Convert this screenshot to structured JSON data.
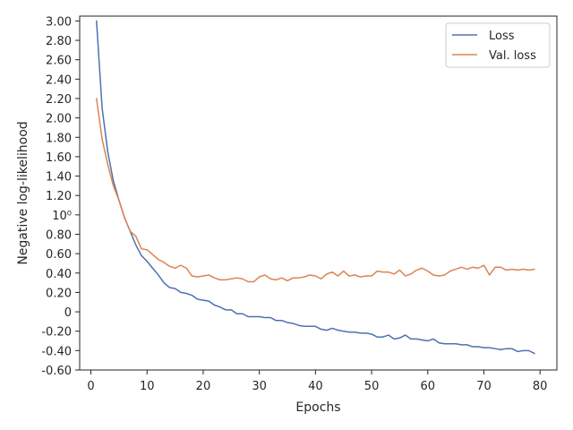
{
  "chart_data": {
    "type": "line",
    "xlabel": "Epochs",
    "ylabel": "Negative log-likelihood",
    "xlim": [
      -2,
      83
    ],
    "ylim": [
      -0.6,
      3.05
    ],
    "grid": false,
    "legend_placement": "top-right",
    "x_ticks": [
      0,
      10,
      20,
      30,
      40,
      50,
      60,
      70,
      80
    ],
    "y_ticks": [
      {
        "value": -0.6,
        "label": "-0.60"
      },
      {
        "value": -0.4,
        "label": "-0.40"
      },
      {
        "value": -0.2,
        "label": "-0.20"
      },
      {
        "value": 0.0,
        "label": "0"
      },
      {
        "value": 0.2,
        "label": "0.20"
      },
      {
        "value": 0.4,
        "label": "0.40"
      },
      {
        "value": 0.6,
        "label": "0.60"
      },
      {
        "value": 0.8,
        "label": "0.80"
      },
      {
        "value": 1.0,
        "label": "10⁰"
      },
      {
        "value": 1.2,
        "label": "1.20"
      },
      {
        "value": 1.4,
        "label": "1.40"
      },
      {
        "value": 1.6,
        "label": "1.60"
      },
      {
        "value": 1.8,
        "label": "1.80"
      },
      {
        "value": 2.0,
        "label": "2.00"
      },
      {
        "value": 2.2,
        "label": "2.20"
      },
      {
        "value": 2.4,
        "label": "2.40"
      },
      {
        "value": 2.6,
        "label": "2.60"
      },
      {
        "value": 2.8,
        "label": "2.80"
      },
      {
        "value": 3.0,
        "label": "3.00"
      }
    ],
    "series": [
      {
        "name": "Loss",
        "color": "#4c72b0",
        "x": [
          1,
          2,
          3,
          4,
          5,
          6,
          7,
          8,
          9,
          10,
          11,
          12,
          13,
          14,
          15,
          16,
          17,
          18,
          19,
          20,
          21,
          22,
          23,
          24,
          25,
          26,
          27,
          28,
          29,
          30,
          31,
          32,
          33,
          34,
          35,
          36,
          37,
          38,
          39,
          40,
          41,
          42,
          43,
          44,
          45,
          46,
          47,
          48,
          49,
          50,
          51,
          52,
          53,
          54,
          55,
          56,
          57,
          58,
          59,
          60,
          61,
          62,
          63,
          64,
          65,
          66,
          67,
          68,
          69,
          70,
          71,
          72,
          73,
          74,
          75,
          76,
          77,
          78,
          79
        ],
        "values": [
          3.0,
          2.1,
          1.65,
          1.35,
          1.15,
          0.97,
          0.83,
          0.69,
          0.58,
          0.52,
          0.45,
          0.38,
          0.3,
          0.25,
          0.24,
          0.2,
          0.19,
          0.17,
          0.13,
          0.12,
          0.11,
          0.07,
          0.05,
          0.02,
          0.02,
          -0.02,
          -0.02,
          -0.05,
          -0.05,
          -0.05,
          -0.06,
          -0.06,
          -0.09,
          -0.09,
          -0.11,
          -0.12,
          -0.14,
          -0.15,
          -0.15,
          -0.15,
          -0.18,
          -0.19,
          -0.17,
          -0.19,
          -0.2,
          -0.21,
          -0.21,
          -0.22,
          -0.22,
          -0.23,
          -0.26,
          -0.26,
          -0.24,
          -0.28,
          -0.27,
          -0.24,
          -0.28,
          -0.28,
          -0.29,
          -0.3,
          -0.28,
          -0.32,
          -0.33,
          -0.33,
          -0.33,
          -0.34,
          -0.34,
          -0.36,
          -0.36,
          -0.37,
          -0.37,
          -0.38,
          -0.39,
          -0.38,
          -0.38,
          -0.41,
          -0.4,
          -0.4,
          -0.43
        ]
      },
      {
        "name": "Val. loss",
        "color": "#dd8452",
        "x": [
          1,
          2,
          3,
          4,
          5,
          6,
          7,
          8,
          9,
          10,
          11,
          12,
          13,
          14,
          15,
          16,
          17,
          18,
          19,
          20,
          21,
          22,
          23,
          24,
          25,
          26,
          27,
          28,
          29,
          30,
          31,
          32,
          33,
          34,
          35,
          36,
          37,
          38,
          39,
          40,
          41,
          42,
          43,
          44,
          45,
          46,
          47,
          48,
          49,
          50,
          51,
          52,
          53,
          54,
          55,
          56,
          57,
          58,
          59,
          60,
          61,
          62,
          63,
          64,
          65,
          66,
          67,
          68,
          69,
          70,
          71,
          72,
          73,
          74,
          75,
          76,
          77,
          78,
          79
        ],
        "values": [
          2.2,
          1.78,
          1.52,
          1.3,
          1.15,
          0.97,
          0.83,
          0.78,
          0.65,
          0.64,
          0.59,
          0.54,
          0.51,
          0.47,
          0.45,
          0.48,
          0.45,
          0.37,
          0.36,
          0.37,
          0.38,
          0.35,
          0.33,
          0.33,
          0.34,
          0.35,
          0.34,
          0.31,
          0.31,
          0.36,
          0.38,
          0.34,
          0.33,
          0.35,
          0.32,
          0.35,
          0.35,
          0.36,
          0.38,
          0.37,
          0.34,
          0.39,
          0.41,
          0.37,
          0.42,
          0.37,
          0.38,
          0.36,
          0.37,
          0.37,
          0.42,
          0.41,
          0.41,
          0.39,
          0.43,
          0.37,
          0.39,
          0.43,
          0.45,
          0.42,
          0.38,
          0.37,
          0.38,
          0.42,
          0.44,
          0.46,
          0.44,
          0.46,
          0.45,
          0.48,
          0.38,
          0.46,
          0.46,
          0.43,
          0.44,
          0.43,
          0.44,
          0.43,
          0.44
        ]
      }
    ]
  }
}
